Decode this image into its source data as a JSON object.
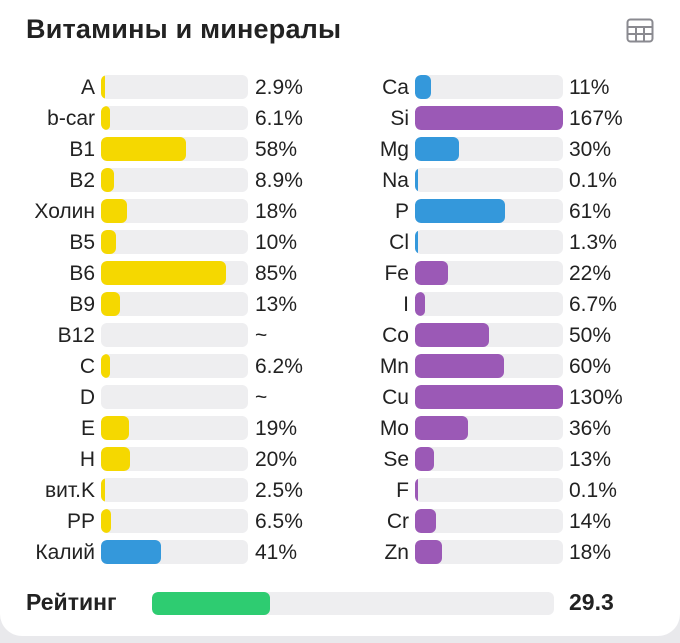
{
  "title": "Витамины и минералы",
  "colors": {
    "vitamin": "#f5d800",
    "blue": "#3498db",
    "purple": "#9b59b6",
    "rating": "#2ecc71"
  },
  "vitamins": [
    {
      "label": "A",
      "pct_text": "2.9%",
      "value": 2.9,
      "color": "vitamin"
    },
    {
      "label": "b-car",
      "pct_text": "6.1%",
      "value": 6.1,
      "color": "vitamin"
    },
    {
      "label": "B1",
      "pct_text": "58%",
      "value": 58,
      "color": "vitamin"
    },
    {
      "label": "B2",
      "pct_text": "8.9%",
      "value": 8.9,
      "color": "vitamin"
    },
    {
      "label": "Холин",
      "pct_text": "18%",
      "value": 18,
      "color": "vitamin"
    },
    {
      "label": "B5",
      "pct_text": "10%",
      "value": 10,
      "color": "vitamin"
    },
    {
      "label": "B6",
      "pct_text": "85%",
      "value": 85,
      "color": "vitamin"
    },
    {
      "label": "B9",
      "pct_text": "13%",
      "value": 13,
      "color": "vitamin"
    },
    {
      "label": "B12",
      "pct_text": "~",
      "value": 0,
      "color": "vitamin"
    },
    {
      "label": "C",
      "pct_text": "6.2%",
      "value": 6.2,
      "color": "vitamin"
    },
    {
      "label": "D",
      "pct_text": "~",
      "value": 0,
      "color": "vitamin"
    },
    {
      "label": "E",
      "pct_text": "19%",
      "value": 19,
      "color": "vitamin"
    },
    {
      "label": "H",
      "pct_text": "20%",
      "value": 20,
      "color": "vitamin"
    },
    {
      "label": "вит.K",
      "pct_text": "2.5%",
      "value": 2.5,
      "color": "vitamin"
    },
    {
      "label": "PP",
      "pct_text": "6.5%",
      "value": 6.5,
      "color": "vitamin"
    },
    {
      "label": "Калий",
      "pct_text": "41%",
      "value": 41,
      "color": "blue"
    }
  ],
  "minerals": [
    {
      "label": "Ca",
      "pct_text": "11%",
      "value": 11,
      "color": "blue"
    },
    {
      "label": "Si",
      "pct_text": "167%",
      "value": 167,
      "color": "purple"
    },
    {
      "label": "Mg",
      "pct_text": "30%",
      "value": 30,
      "color": "blue"
    },
    {
      "label": "Na",
      "pct_text": "0.1%",
      "value": 0.1,
      "color": "blue"
    },
    {
      "label": "P",
      "pct_text": "61%",
      "value": 61,
      "color": "blue"
    },
    {
      "label": "Cl",
      "pct_text": "1.3%",
      "value": 1.3,
      "color": "blue"
    },
    {
      "label": "Fe",
      "pct_text": "22%",
      "value": 22,
      "color": "purple"
    },
    {
      "label": "I",
      "pct_text": "6.7%",
      "value": 6.7,
      "color": "purple"
    },
    {
      "label": "Co",
      "pct_text": "50%",
      "value": 50,
      "color": "purple"
    },
    {
      "label": "Mn",
      "pct_text": "60%",
      "value": 60,
      "color": "purple"
    },
    {
      "label": "Cu",
      "pct_text": "130%",
      "value": 130,
      "color": "purple"
    },
    {
      "label": "Mo",
      "pct_text": "36%",
      "value": 36,
      "color": "purple"
    },
    {
      "label": "Se",
      "pct_text": "13%",
      "value": 13,
      "color": "purple"
    },
    {
      "label": "F",
      "pct_text": "0.1%",
      "value": 0.1,
      "color": "purple"
    },
    {
      "label": "Cr",
      "pct_text": "14%",
      "value": 14,
      "color": "purple"
    },
    {
      "label": "Zn",
      "pct_text": "18%",
      "value": 18,
      "color": "purple"
    }
  ],
  "rating": {
    "label": "Рейтинг",
    "value_text": "29.3",
    "value": 29.3,
    "max": 100
  },
  "icons": {
    "table": "table-view-icon"
  }
}
